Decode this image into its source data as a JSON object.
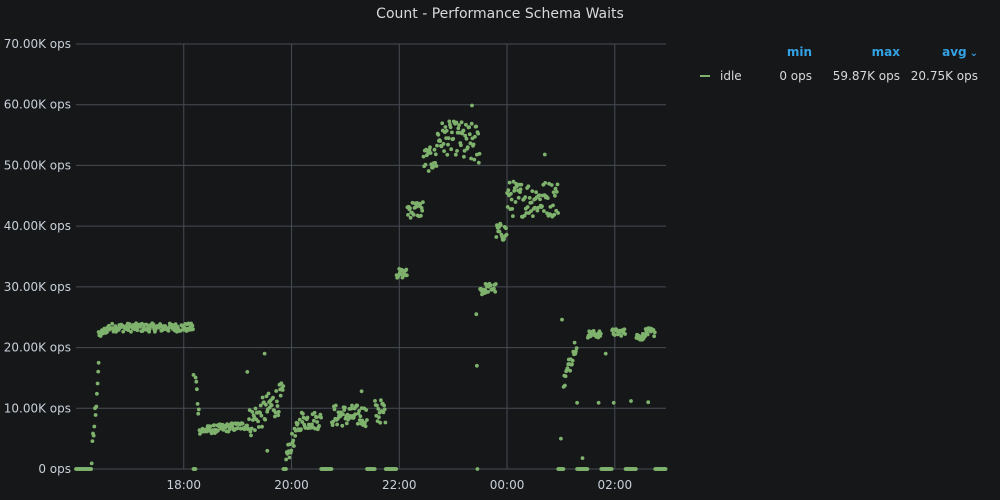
{
  "panel": {
    "title": "Count - Performance Schema Waits"
  },
  "colors": {
    "background": "#161719",
    "grid": "#464c54",
    "series": "#7eb26d",
    "legend_header": "#33a2e5",
    "text": "#c7d0d9"
  },
  "legend": {
    "headers": {
      "min": "min",
      "max": "max",
      "avg": "avg"
    },
    "sort_icon": "chevron-down-icon",
    "series": [
      {
        "name": "idle",
        "min": "0 ops",
        "max": "59.87K ops",
        "avg": "20.75K ops"
      }
    ]
  },
  "chart_data": {
    "type": "scatter",
    "title": "Count - Performance Schema Waits",
    "x_axis": {
      "ticks": [
        "18:00",
        "20:00",
        "22:00",
        "00:00",
        "02:00"
      ],
      "tick_hours": [
        18,
        20,
        22,
        24,
        26
      ],
      "range_hours": [
        16.0,
        26.95
      ]
    },
    "y_axis": {
      "ticks": [
        "0 ops",
        "10.00K ops",
        "20.00K ops",
        "30.00K ops",
        "40.00K ops",
        "50.00K ops",
        "60.00K ops",
        "70.00K ops"
      ],
      "tick_values": [
        0,
        10000,
        20000,
        30000,
        40000,
        50000,
        60000,
        70000
      ],
      "range": [
        0,
        70000
      ]
    },
    "grid": true,
    "legend_position": "right",
    "series": [
      {
        "name": "idle",
        "segments": [
          {
            "start": 16.0,
            "end": 16.28,
            "value": 0,
            "noise": 0
          },
          {
            "start": 16.28,
            "end": 16.42,
            "value_from": 0,
            "value_to": 17000,
            "noise": 2000
          },
          {
            "start": 16.42,
            "end": 16.6,
            "value_from": 22000,
            "value_to": 23200,
            "noise": 600
          },
          {
            "start": 16.6,
            "end": 18.18,
            "value": 23300,
            "noise": 700
          },
          {
            "start": 18.18,
            "end": 18.22,
            "value": 0,
            "noise": 0
          },
          {
            "start": 18.22,
            "end": 18.3,
            "value_from": 15000,
            "value_to": 7000,
            "noise": 1500
          },
          {
            "start": 18.3,
            "end": 19.2,
            "value_from": 6300,
            "value_to": 7200,
            "noise": 700
          },
          {
            "start": 19.2,
            "end": 19.85,
            "value_from": 7500,
            "value_to": 12000,
            "noise": 2500
          },
          {
            "start": 19.85,
            "end": 19.9,
            "value": 0,
            "noise": 0
          },
          {
            "start": 19.9,
            "end": 20.2,
            "value_from": 2000,
            "value_to": 8500,
            "noise": 1500
          },
          {
            "start": 20.2,
            "end": 20.55,
            "value": 8000,
            "noise": 1500
          },
          {
            "start": 20.55,
            "end": 20.75,
            "value": 0,
            "noise": 0
          },
          {
            "start": 20.75,
            "end": 21.4,
            "value": 8800,
            "noise": 1800
          },
          {
            "start": 21.4,
            "end": 21.55,
            "value": 0,
            "noise": 0
          },
          {
            "start": 21.55,
            "end": 21.75,
            "value": 9500,
            "noise": 2000
          },
          {
            "start": 21.75,
            "end": 21.95,
            "value": 0,
            "noise": 0
          },
          {
            "start": 21.95,
            "end": 22.15,
            "value": 32200,
            "noise": 800
          },
          {
            "start": 22.15,
            "end": 22.45,
            "value": 42800,
            "noise": 1500
          },
          {
            "start": 22.45,
            "end": 22.7,
            "value": 51000,
            "noise": 2000
          },
          {
            "start": 22.7,
            "end": 23.2,
            "value": 54500,
            "noise": 2800
          },
          {
            "start": 23.2,
            "end": 23.5,
            "value": 53500,
            "noise": 3500
          },
          {
            "start": 23.5,
            "end": 23.6,
            "value": 29500,
            "noise": 900
          },
          {
            "start": 23.6,
            "end": 23.8,
            "value": 29800,
            "noise": 800
          },
          {
            "start": 23.8,
            "end": 24.0,
            "value": 39000,
            "noise": 1500
          },
          {
            "start": 24.0,
            "end": 24.95,
            "value": 44500,
            "noise": 3000
          },
          {
            "start": 24.95,
            "end": 25.05,
            "value": 0,
            "noise": 0
          },
          {
            "start": 25.05,
            "end": 25.3,
            "value_from": 14000,
            "value_to": 21500,
            "noise": 1500
          },
          {
            "start": 25.3,
            "end": 25.5,
            "value": 0,
            "noise": 0
          },
          {
            "start": 25.5,
            "end": 25.75,
            "value": 22200,
            "noise": 600
          },
          {
            "start": 25.75,
            "end": 25.95,
            "value": 0,
            "noise": 0
          },
          {
            "start": 25.95,
            "end": 26.2,
            "value": 22500,
            "noise": 600
          },
          {
            "start": 26.2,
            "end": 26.4,
            "value": 0,
            "noise": 0
          },
          {
            "start": 26.4,
            "end": 26.55,
            "value": 21800,
            "noise": 600
          },
          {
            "start": 26.55,
            "end": 26.75,
            "value": 22500,
            "noise": 700
          },
          {
            "start": 26.75,
            "end": 26.95,
            "value": 0,
            "noise": 0
          }
        ],
        "outliers": [
          {
            "x": 16.42,
            "value": 17500
          },
          {
            "x": 18.18,
            "value": 15500
          },
          {
            "x": 19.18,
            "value": 16000
          },
          {
            "x": 19.5,
            "value": 19000
          },
          {
            "x": 19.55,
            "value": 3000
          },
          {
            "x": 21.3,
            "value": 12800
          },
          {
            "x": 23.35,
            "value": 59870
          },
          {
            "x": 23.43,
            "value": 25500
          },
          {
            "x": 23.44,
            "value": 17000
          },
          {
            "x": 23.45,
            "value": 0
          },
          {
            "x": 24.7,
            "value": 51800
          },
          {
            "x": 25.02,
            "value": 24600
          },
          {
            "x": 25.0,
            "value": 5000
          },
          {
            "x": 25.3,
            "value": 10900
          },
          {
            "x": 25.4,
            "value": 1800
          },
          {
            "x": 25.7,
            "value": 10900
          },
          {
            "x": 25.83,
            "value": 19000
          },
          {
            "x": 25.98,
            "value": 10900
          },
          {
            "x": 26.3,
            "value": 11200
          },
          {
            "x": 26.62,
            "value": 11000
          }
        ]
      }
    ]
  }
}
